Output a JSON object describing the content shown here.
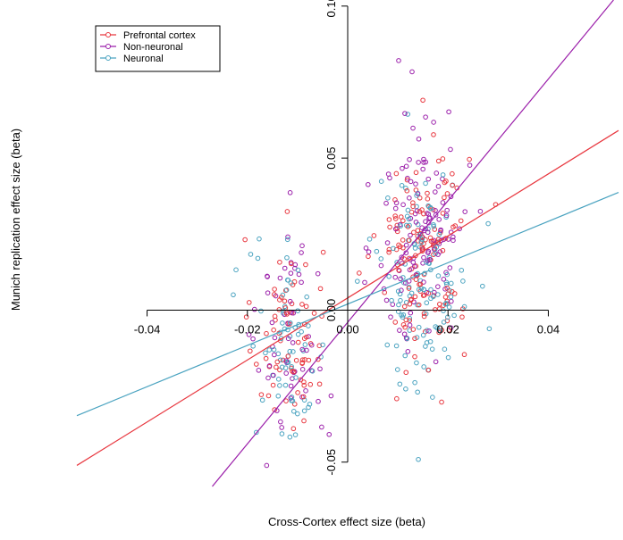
{
  "chart_data": {
    "type": "scatter",
    "xlabel": "Cross-Cortex effect size (beta)",
    "ylabel": "Munich replication effect size (beta)",
    "xlim": [
      -0.054,
      0.054
    ],
    "ylim": [
      -0.058,
      0.102
    ],
    "x_ticks": [
      -0.04,
      -0.02,
      0.0,
      0.02,
      0.04
    ],
    "x_tick_labels": [
      "-0.04",
      "-0.02",
      "0.00",
      "0.02",
      "0.04"
    ],
    "y_ticks": [
      -0.05,
      0.0,
      0.05,
      0.1
    ],
    "y_tick_labels": [
      "-0.05",
      "0.00",
      "0.05",
      "0.10"
    ],
    "legend_position": "top-left",
    "grid": false,
    "series": [
      {
        "name": "Prefrontal cortex",
        "color": "#e8373f",
        "fit": {
          "slope": 1.02,
          "intercept": 0.004
        },
        "clusters": [
          {
            "x_mean": -0.012,
            "x_sd": 0.0035,
            "y_mean": -0.008,
            "y_sd": 0.016,
            "count": 75
          },
          {
            "x_mean": 0.015,
            "x_sd": 0.0045,
            "y_mean": 0.02,
            "y_sd": 0.019,
            "count": 140
          }
        ]
      },
      {
        "name": "Non-neuronal",
        "color": "#9b1faa",
        "fit": {
          "slope": 2.0,
          "intercept": -0.004
        },
        "clusters": [
          {
            "x_mean": -0.011,
            "x_sd": 0.0035,
            "y_mean": -0.01,
            "y_sd": 0.018,
            "count": 60
          },
          {
            "x_mean": 0.015,
            "x_sd": 0.0045,
            "y_mean": 0.026,
            "y_sd": 0.02,
            "count": 130
          }
        ]
      },
      {
        "name": "Neuronal",
        "color": "#4aa3c0",
        "fit": {
          "slope": 0.68,
          "intercept": 0.002
        },
        "clusters": [
          {
            "x_mean": -0.012,
            "x_sd": 0.004,
            "y_mean": -0.012,
            "y_sd": 0.016,
            "count": 70
          },
          {
            "x_mean": 0.015,
            "x_sd": 0.0045,
            "y_mean": 0.01,
            "y_sd": 0.018,
            "count": 130
          }
        ]
      }
    ]
  }
}
